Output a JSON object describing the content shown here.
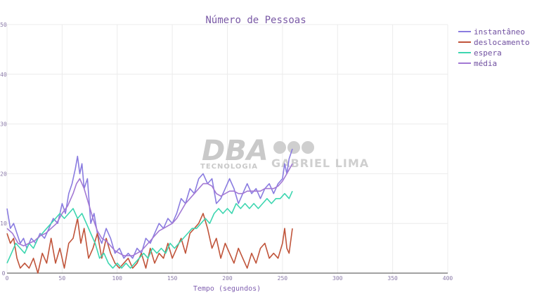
{
  "chart_data": {
    "type": "line",
    "title": "Número de Pessoas",
    "xlabel": "Tempo (segundos)",
    "ylabel": "",
    "xlim": [
      0,
      400
    ],
    "ylim": [
      0,
      50
    ],
    "x_ticks": [
      "0",
      "50",
      "100",
      "150",
      "200",
      "250",
      "300",
      "350",
      "400"
    ],
    "y_ticks": [
      "0",
      "10",
      "20",
      "30",
      "40",
      "50"
    ],
    "grid": true,
    "legend": "top-right",
    "series": [
      {
        "name": "instantâneo",
        "color": "#8a7ce0",
        "points": [
          [
            0,
            13
          ],
          [
            3,
            9
          ],
          [
            6,
            10
          ],
          [
            9,
            8
          ],
          [
            12,
            6
          ],
          [
            15,
            7
          ],
          [
            18,
            5
          ],
          [
            22,
            7
          ],
          [
            26,
            6
          ],
          [
            30,
            8
          ],
          [
            34,
            7
          ],
          [
            38,
            9
          ],
          [
            42,
            11
          ],
          [
            46,
            10
          ],
          [
            50,
            14
          ],
          [
            53,
            12
          ],
          [
            56,
            16
          ],
          [
            59,
            18
          ],
          [
            62,
            21
          ],
          [
            64,
            23.5
          ],
          [
            66,
            20
          ],
          [
            68,
            22
          ],
          [
            70,
            17
          ],
          [
            73,
            19
          ],
          [
            76,
            10
          ],
          [
            79,
            12
          ],
          [
            82,
            8
          ],
          [
            86,
            6
          ],
          [
            90,
            9
          ],
          [
            94,
            7
          ],
          [
            98,
            4
          ],
          [
            102,
            5
          ],
          [
            106,
            3
          ],
          [
            110,
            4
          ],
          [
            114,
            3
          ],
          [
            118,
            5
          ],
          [
            122,
            4
          ],
          [
            126,
            7
          ],
          [
            130,
            6
          ],
          [
            134,
            8
          ],
          [
            138,
            10
          ],
          [
            142,
            9
          ],
          [
            146,
            11
          ],
          [
            150,
            10
          ],
          [
            154,
            12
          ],
          [
            158,
            15
          ],
          [
            162,
            14
          ],
          [
            166,
            17
          ],
          [
            170,
            16
          ],
          [
            174,
            19
          ],
          [
            178,
            20
          ],
          [
            182,
            18
          ],
          [
            186,
            19
          ],
          [
            190,
            14
          ],
          [
            194,
            15
          ],
          [
            198,
            17
          ],
          [
            202,
            19
          ],
          [
            206,
            17
          ],
          [
            210,
            14
          ],
          [
            214,
            16
          ],
          [
            218,
            18
          ],
          [
            222,
            16
          ],
          [
            226,
            17
          ],
          [
            230,
            15
          ],
          [
            234,
            17
          ],
          [
            238,
            18
          ],
          [
            242,
            16
          ],
          [
            246,
            18
          ],
          [
            250,
            19
          ],
          [
            252,
            22
          ],
          [
            254,
            20
          ],
          [
            256,
            23
          ],
          [
            259,
            25
          ]
        ]
      },
      {
        "name": "deslocamento",
        "color": "#c0543a",
        "points": [
          [
            0,
            8
          ],
          [
            3,
            6
          ],
          [
            6,
            7
          ],
          [
            9,
            3
          ],
          [
            12,
            1
          ],
          [
            16,
            2
          ],
          [
            20,
            1
          ],
          [
            24,
            3
          ],
          [
            28,
            0
          ],
          [
            32,
            4
          ],
          [
            36,
            2
          ],
          [
            40,
            7
          ],
          [
            44,
            2
          ],
          [
            48,
            5
          ],
          [
            52,
            1
          ],
          [
            56,
            6
          ],
          [
            60,
            7
          ],
          [
            64,
            11
          ],
          [
            67,
            6
          ],
          [
            70,
            9
          ],
          [
            74,
            3
          ],
          [
            78,
            5
          ],
          [
            82,
            8
          ],
          [
            86,
            3
          ],
          [
            90,
            7
          ],
          [
            94,
            4
          ],
          [
            98,
            2
          ],
          [
            102,
            1
          ],
          [
            106,
            2
          ],
          [
            110,
            3
          ],
          [
            114,
            1
          ],
          [
            118,
            2
          ],
          [
            122,
            4
          ],
          [
            126,
            1
          ],
          [
            130,
            5
          ],
          [
            134,
            2
          ],
          [
            138,
            4
          ],
          [
            142,
            3
          ],
          [
            146,
            6
          ],
          [
            150,
            3
          ],
          [
            154,
            5
          ],
          [
            158,
            7
          ],
          [
            162,
            4
          ],
          [
            166,
            8
          ],
          [
            170,
            9
          ],
          [
            174,
            10
          ],
          [
            178,
            12
          ],
          [
            182,
            9
          ],
          [
            186,
            5
          ],
          [
            190,
            7
          ],
          [
            194,
            3
          ],
          [
            198,
            6
          ],
          [
            202,
            4
          ],
          [
            206,
            2
          ],
          [
            210,
            5
          ],
          [
            214,
            3
          ],
          [
            218,
            1
          ],
          [
            222,
            4
          ],
          [
            226,
            2
          ],
          [
            230,
            5
          ],
          [
            234,
            6
          ],
          [
            238,
            3
          ],
          [
            242,
            4
          ],
          [
            246,
            3
          ],
          [
            250,
            6
          ],
          [
            252,
            9
          ],
          [
            254,
            5
          ],
          [
            256,
            4
          ],
          [
            259,
            9
          ]
        ]
      },
      {
        "name": "espera",
        "color": "#3dd6b0",
        "points": [
          [
            0,
            2
          ],
          [
            4,
            4
          ],
          [
            8,
            6
          ],
          [
            12,
            5
          ],
          [
            16,
            4
          ],
          [
            20,
            6
          ],
          [
            24,
            5
          ],
          [
            28,
            7
          ],
          [
            32,
            8
          ],
          [
            36,
            9
          ],
          [
            40,
            10
          ],
          [
            44,
            11
          ],
          [
            48,
            12
          ],
          [
            52,
            11
          ],
          [
            56,
            12
          ],
          [
            60,
            13
          ],
          [
            64,
            11
          ],
          [
            68,
            12
          ],
          [
            72,
            10
          ],
          [
            76,
            8
          ],
          [
            80,
            6
          ],
          [
            84,
            3
          ],
          [
            88,
            4
          ],
          [
            92,
            2
          ],
          [
            96,
            1
          ],
          [
            100,
            2
          ],
          [
            104,
            1
          ],
          [
            108,
            2
          ],
          [
            112,
            1
          ],
          [
            116,
            2
          ],
          [
            120,
            3
          ],
          [
            124,
            4
          ],
          [
            128,
            3
          ],
          [
            132,
            5
          ],
          [
            136,
            4
          ],
          [
            140,
            5
          ],
          [
            144,
            4
          ],
          [
            148,
            6
          ],
          [
            152,
            5
          ],
          [
            156,
            6
          ],
          [
            160,
            7
          ],
          [
            164,
            8
          ],
          [
            168,
            9
          ],
          [
            172,
            9
          ],
          [
            176,
            10
          ],
          [
            180,
            11
          ],
          [
            184,
            10
          ],
          [
            188,
            12
          ],
          [
            192,
            13
          ],
          [
            196,
            12
          ],
          [
            200,
            13
          ],
          [
            204,
            12
          ],
          [
            208,
            14
          ],
          [
            212,
            13
          ],
          [
            216,
            14
          ],
          [
            220,
            13
          ],
          [
            224,
            14
          ],
          [
            228,
            13
          ],
          [
            232,
            14
          ],
          [
            236,
            15
          ],
          [
            240,
            14
          ],
          [
            244,
            15
          ],
          [
            248,
            15
          ],
          [
            252,
            16
          ],
          [
            256,
            15
          ],
          [
            259,
            16.5
          ]
        ]
      },
      {
        "name": "média",
        "color": "#a278d4",
        "points": [
          [
            0,
            9
          ],
          [
            5,
            8
          ],
          [
            10,
            6
          ],
          [
            15,
            5.5
          ],
          [
            20,
            6
          ],
          [
            25,
            6.5
          ],
          [
            30,
            7.5
          ],
          [
            35,
            8
          ],
          [
            40,
            9
          ],
          [
            45,
            10
          ],
          [
            50,
            12
          ],
          [
            55,
            13.5
          ],
          [
            60,
            16
          ],
          [
            63,
            18
          ],
          [
            66,
            19
          ],
          [
            70,
            17
          ],
          [
            74,
            14
          ],
          [
            78,
            11
          ],
          [
            82,
            8.5
          ],
          [
            86,
            7
          ],
          [
            90,
            6.5
          ],
          [
            94,
            5.5
          ],
          [
            98,
            4.5
          ],
          [
            102,
            4
          ],
          [
            106,
            3.5
          ],
          [
            110,
            3.5
          ],
          [
            114,
            3.5
          ],
          [
            118,
            4
          ],
          [
            122,
            4.5
          ],
          [
            126,
            5.5
          ],
          [
            130,
            6.5
          ],
          [
            134,
            7.5
          ],
          [
            138,
            8.5
          ],
          [
            142,
            9
          ],
          [
            146,
            9.5
          ],
          [
            150,
            10
          ],
          [
            154,
            11
          ],
          [
            158,
            12.5
          ],
          [
            162,
            14
          ],
          [
            166,
            15
          ],
          [
            170,
            16
          ],
          [
            174,
            17
          ],
          [
            178,
            18
          ],
          [
            182,
            18
          ],
          [
            186,
            17.5
          ],
          [
            190,
            16
          ],
          [
            194,
            15.5
          ],
          [
            198,
            16
          ],
          [
            202,
            16.5
          ],
          [
            206,
            16.5
          ],
          [
            210,
            16
          ],
          [
            214,
            16
          ],
          [
            218,
            16.5
          ],
          [
            222,
            16.5
          ],
          [
            226,
            16.5
          ],
          [
            230,
            16.5
          ],
          [
            234,
            17
          ],
          [
            238,
            17
          ],
          [
            242,
            17
          ],
          [
            246,
            17.5
          ],
          [
            250,
            18.5
          ],
          [
            254,
            20
          ],
          [
            259,
            22
          ]
        ]
      }
    ]
  },
  "watermark": {
    "logo_main": "DBA",
    "logo_sub": "TECNOLOGIA",
    "author": "GABRIEL LIMA"
  }
}
